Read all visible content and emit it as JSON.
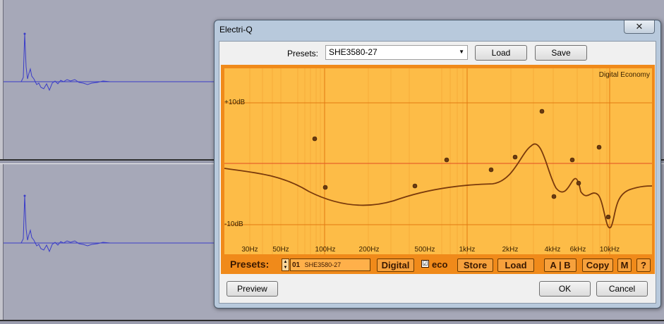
{
  "dialog": {
    "title": "Electri-Q",
    "close_glyph": "✕",
    "presets_label": "Presets:",
    "preset_value": "SHE3580-27",
    "load_label": "Load",
    "save_label": "Save",
    "preview_label": "Preview",
    "ok_label": "OK",
    "cancel_label": "Cancel"
  },
  "eq": {
    "brand": "Digital Economy",
    "db_labels": [
      "+10dB",
      "-10dB"
    ],
    "freq_labels": [
      "30Hz",
      "50Hz",
      "100Hz",
      "200Hz",
      "500Hz",
      "1kHz",
      "2kHz",
      "4kHz",
      "6kHz",
      "10kHz"
    ],
    "colors": {
      "panel": "#f08a1a",
      "graph": "#fdbc47",
      "curve": "#7a3a0c",
      "point": "#6b3a10"
    }
  },
  "bar": {
    "presets_label": "Presets:",
    "preset_number": "01",
    "preset_name": "SHE3580-27",
    "digital_label": "Digital",
    "eco_checked": "☑",
    "eco_label": "eco",
    "store_label": "Store",
    "load_label": "Load",
    "ab_label": "A | B",
    "copy_label": "Copy",
    "m_label": "M",
    "help_label": "?"
  }
}
